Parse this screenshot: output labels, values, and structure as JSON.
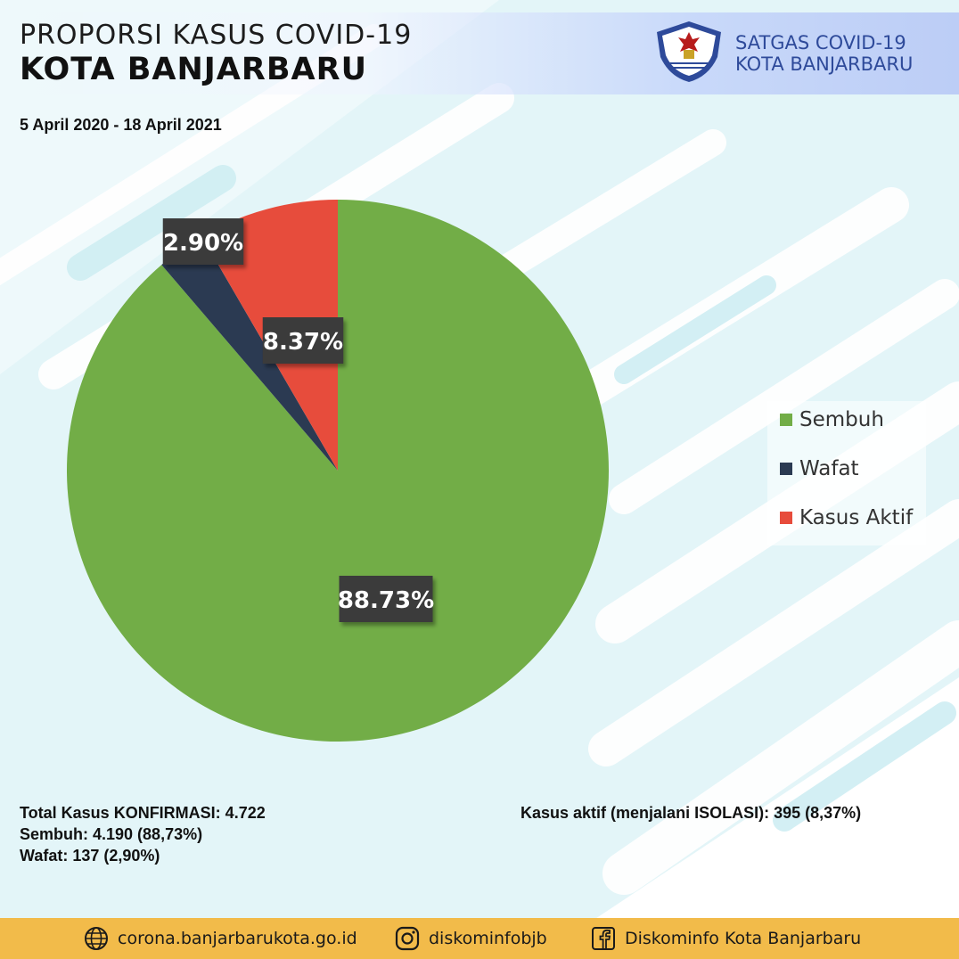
{
  "header": {
    "title_line1": "PROPORSI KASUS COVID-19",
    "title_line2": "KOTA BANJARBARU",
    "date_range": "5 April 2020 - 18 April 2021",
    "logo_line1": "SATGAS COVID-19",
    "logo_line2": "KOTA BANJARBARU"
  },
  "chart_data": {
    "type": "pie",
    "slices": [
      {
        "name": "Sembuh",
        "value": 88.73,
        "label": "88.73%",
        "color": "#72ad47"
      },
      {
        "name": "Wafat",
        "value": 2.9,
        "label": "2.90%",
        "color": "#2b3a52"
      },
      {
        "name": "Kasus Aktif",
        "value": 8.37,
        "label": "8.37%",
        "color": "#e74c3c"
      }
    ],
    "legend_position": "right"
  },
  "summary": {
    "total": "Total Kasus KONFIRMASI: 4.722",
    "sembuh": "Sembuh: 4.190 (88,73%)",
    "wafat": "Wafat: 137 (2,90%)",
    "aktif": "Kasus aktif (menjalani ISOLASI): 395 (8,37%)"
  },
  "footer": {
    "website": "corona.banjarbarukota.go.id",
    "instagram": "diskominfobjb",
    "facebook": "Diskominfo Kota Banjarbaru"
  },
  "colors": {
    "footer_bg": "#f2bb4a",
    "logo_text": "#2e4a9a",
    "background_accent": "#d9f2f6"
  }
}
